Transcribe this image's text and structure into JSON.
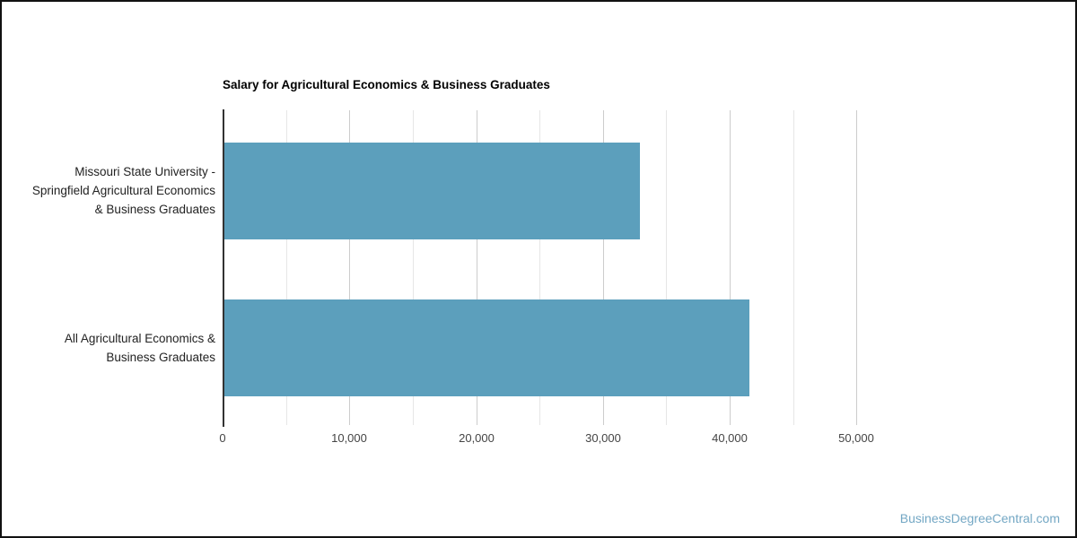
{
  "page": {
    "background": "#ffffff",
    "frame_border_color": "#111111"
  },
  "watermark": {
    "text": "BusinessDegreeCentral.com",
    "color": "#73A7C4"
  },
  "chart_data": {
    "type": "bar",
    "orientation": "horizontal",
    "title": "Salary for Agricultural Economics & Business Graduates",
    "categories": [
      "Missouri State University -\nSpringfield Agricultural Economics\n& Business Graduates",
      "All Agricultural Economics &\nBusiness Graduates"
    ],
    "values": [
      32800,
      41400
    ],
    "xlabel": "",
    "ylabel": "",
    "xlim": [
      0,
      55000
    ],
    "x_major_ticks": [
      0,
      10000,
      20000,
      30000,
      40000,
      50000
    ],
    "x_tick_labels": [
      "0",
      "10,000",
      "20,000",
      "30,000",
      "40,000",
      "50,000"
    ],
    "x_minor_gridlines": [
      5000,
      15000,
      25000,
      35000,
      45000
    ],
    "bar_color": "#5C9FBC",
    "grid": true,
    "gridlines": {
      "major_color": "#cccccc",
      "minor_color": "#e6e6e6",
      "baseline_color": "#333333"
    },
    "legend": "none"
  }
}
